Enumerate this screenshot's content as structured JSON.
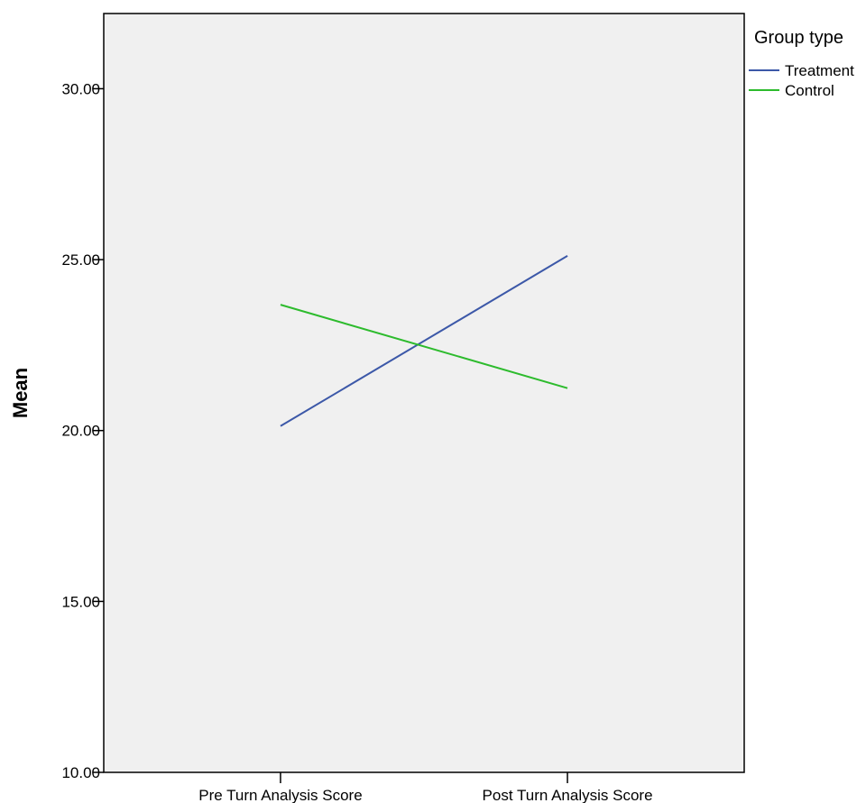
{
  "chart_data": {
    "type": "line",
    "title": "",
    "xlabel": "",
    "ylabel": "Mean",
    "ylim": [
      10,
      32.2
    ],
    "yticks": [
      10,
      15,
      20,
      25,
      30
    ],
    "ytick_labels": [
      "10.00",
      "15.00",
      "20.00",
      "25.00",
      "30.00"
    ],
    "categories": [
      "Pre Turn Analysis Score",
      "Post Turn Analysis Score"
    ],
    "series": [
      {
        "name": "Treatment",
        "color": "#3c58a8",
        "values": [
          20.13,
          25.11
        ]
      },
      {
        "name": "Control",
        "color": "#2dbb2d",
        "values": [
          23.68,
          21.24
        ]
      }
    ],
    "legend": {
      "title": "Group type",
      "placement": "outside-top-right"
    },
    "grid": false,
    "plot_background": "#f0f0f0"
  }
}
